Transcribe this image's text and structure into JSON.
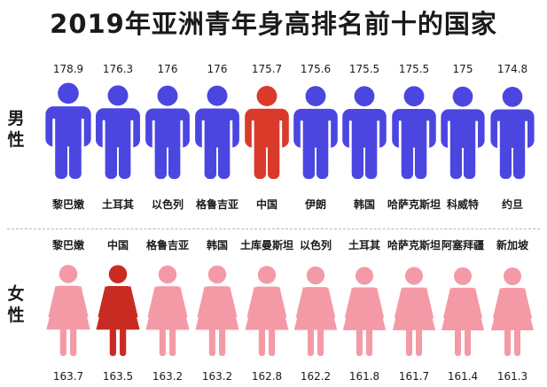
{
  "title": "2019年亚洲青年身高排名前十的国家",
  "labels": {
    "male": "男性",
    "female": "女性"
  },
  "colors": {
    "male": "#4b46e0",
    "male_highlight": "#d93a2a",
    "female": "#f39aa6",
    "female_highlight": "#c92b22"
  },
  "chart_data": [
    {
      "type": "bar",
      "series": [
        {
          "name": "男性",
          "values": [
            178.9,
            176.3,
            176,
            176,
            175.7,
            175.6,
            175.5,
            175.5,
            175,
            174.8
          ]
        }
      ],
      "categories": [
        "黎巴嫩",
        "土耳其",
        "以色列",
        "格鲁吉亚",
        "中国",
        "伊朗",
        "韩国",
        "哈萨克斯坦",
        "科威特",
        "约旦"
      ],
      "value_labels": [
        "178.9",
        "176.3",
        "176",
        "176",
        "175.7",
        "175.6",
        "175.5",
        "175.5",
        "175",
        "174.8"
      ],
      "highlight": "中国"
    },
    {
      "type": "bar",
      "series": [
        {
          "name": "女性",
          "values": [
            163.7,
            163.5,
            163.2,
            163.2,
            162.8,
            162.2,
            161.8,
            161.7,
            161.4,
            161.3
          ]
        }
      ],
      "categories": [
        "黎巴嫩",
        "中国",
        "格鲁吉亚",
        "韩国",
        "土库曼斯坦",
        "以色列",
        "土耳其",
        "哈萨克斯坦",
        "阿塞拜疆",
        "新加坡"
      ],
      "value_labels": [
        "163.7",
        "163.5",
        "163.2",
        "163.2",
        "162.8",
        "162.2",
        "161.8",
        "161.7",
        "161.4",
        "161.3"
      ],
      "highlight": "中国"
    }
  ]
}
